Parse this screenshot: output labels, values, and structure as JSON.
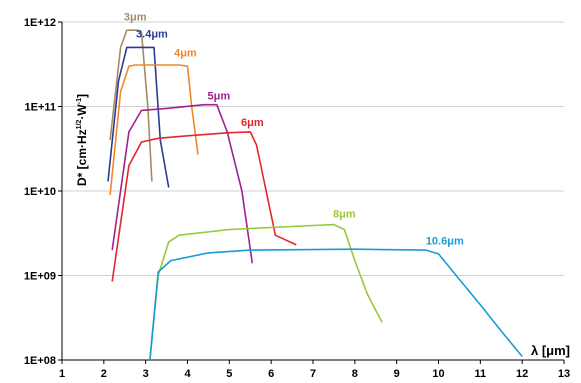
{
  "chart_data": {
    "type": "line",
    "xlabel": "λ [μm]",
    "ylabel_parts": [
      "D* [cm·Hz",
      "1/2",
      "·W",
      "-1",
      "]"
    ],
    "x_ticks": [
      "1",
      "2",
      "3",
      "4",
      "5",
      "6",
      "7",
      "8",
      "9",
      "10",
      "11",
      "12",
      "13"
    ],
    "y_ticks": [
      "1E+08",
      "1E+09",
      "1E+10",
      "1E+11",
      "1E+12"
    ],
    "xlim": [
      1,
      13
    ],
    "ylim": [
      100000000.0,
      1000000000000.0
    ],
    "yscale": "log",
    "grid": "horizontal",
    "series": [
      {
        "name": "3μm",
        "color": "#a58a6a",
        "points": [
          [
            2.15,
            40000000000.0
          ],
          [
            2.4,
            500000000000.0
          ],
          [
            2.55,
            800000000000.0
          ],
          [
            2.8,
            800000000000.0
          ],
          [
            2.9,
            750000000000.0
          ],
          [
            3.05,
            100000000000.0
          ],
          [
            3.15,
            13000000000.0
          ]
        ]
      },
      {
        "name": "3.4μm",
        "color": "#2b3a93",
        "points": [
          [
            2.1,
            13000000000.0
          ],
          [
            2.35,
            200000000000.0
          ],
          [
            2.55,
            500000000000.0
          ],
          [
            2.7,
            500000000000.0
          ],
          [
            3.2,
            500000000000.0
          ],
          [
            3.35,
            40000000000.0
          ],
          [
            3.55,
            11000000000.0
          ]
        ]
      },
      {
        "name": "4μm",
        "color": "#f0882a",
        "points": [
          [
            2.15,
            9000000000.0
          ],
          [
            2.4,
            150000000000.0
          ],
          [
            2.6,
            300000000000.0
          ],
          [
            2.75,
            310000000000.0
          ],
          [
            3.8,
            310000000000.0
          ],
          [
            4.0,
            300000000000.0
          ],
          [
            4.1,
            100000000000.0
          ],
          [
            4.25,
            27000000000.0
          ]
        ]
      },
      {
        "name": "5μm",
        "color": "#a0228f",
        "points": [
          [
            2.2,
            2000000000.0
          ],
          [
            2.6,
            50000000000.0
          ],
          [
            2.9,
            90000000000.0
          ],
          [
            3.5,
            95000000000.0
          ],
          [
            4.4,
            105000000000.0
          ],
          [
            4.7,
            105000000000.0
          ],
          [
            4.95,
            50000000000.0
          ],
          [
            5.3,
            10000000000.0
          ],
          [
            5.55,
            1400000000.0
          ]
        ]
      },
      {
        "name": "6μm",
        "color": "#e0282e",
        "points": [
          [
            2.2,
            850000000.0
          ],
          [
            2.6,
            20000000000.0
          ],
          [
            2.9,
            38000000000.0
          ],
          [
            3.3,
            42000000000.0
          ],
          [
            4.0,
            45000000000.0
          ],
          [
            5.0,
            49000000000.0
          ],
          [
            5.5,
            50000000000.0
          ],
          [
            5.65,
            35000000000.0
          ],
          [
            6.1,
            3000000000.0
          ],
          [
            6.6,
            2300000000.0
          ]
        ]
      },
      {
        "name": "8μm",
        "color": "#98c83b",
        "points": [
          [
            3.1,
            100000000.0
          ],
          [
            3.3,
            1000000000.0
          ],
          [
            3.55,
            2500000000.0
          ],
          [
            3.8,
            3000000000.0
          ],
          [
            5.0,
            3500000000.0
          ],
          [
            6.5,
            3800000000.0
          ],
          [
            7.5,
            4000000000.0
          ],
          [
            7.75,
            3500000000.0
          ],
          [
            8.0,
            1500000000.0
          ],
          [
            8.3,
            600000000.0
          ],
          [
            8.65,
            280000000.0
          ]
        ]
      },
      {
        "name": "10.6μm",
        "color": "#1a9ad6",
        "points": [
          [
            3.1,
            100000000.0
          ],
          [
            3.3,
            1100000000.0
          ],
          [
            3.6,
            1500000000.0
          ],
          [
            4.5,
            1850000000.0
          ],
          [
            5.5,
            2000000000.0
          ],
          [
            8.0,
            2050000000.0
          ],
          [
            9.7,
            2000000000.0
          ],
          [
            10.0,
            1800000000.0
          ],
          [
            10.5,
            900000000.0
          ],
          [
            11.0,
            450000000.0
          ],
          [
            11.5,
            220000000.0
          ],
          [
            12.0,
            110000000.0
          ]
        ]
      }
    ]
  }
}
